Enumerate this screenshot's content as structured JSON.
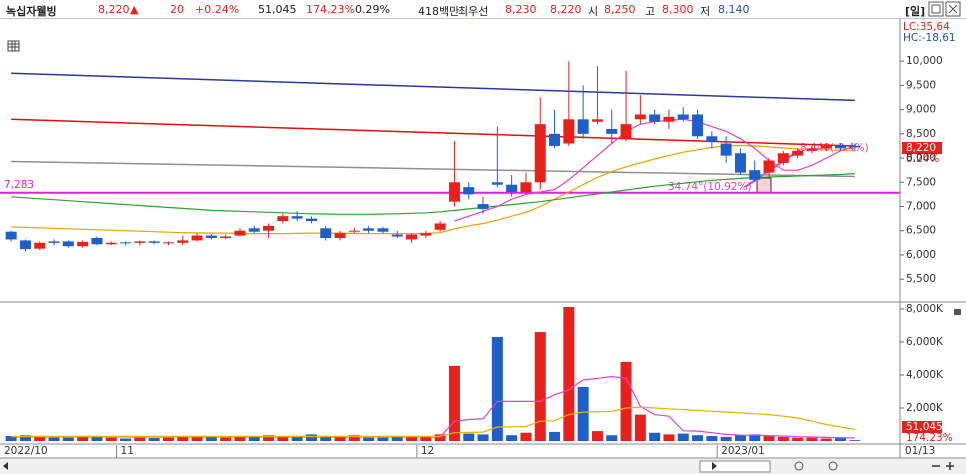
{
  "header": {
    "name": "녹십자웰빙",
    "price": "8,220",
    "arrow": "▲",
    "change": "20",
    "change_pct": "+0.24%",
    "volume": "51,045",
    "volume_ratio": "174.23%",
    "turnover": "0.29%",
    "amount": "418백만",
    "best_label": "최우선",
    "ask": "8,230",
    "bid": "8,220",
    "open_label": "시",
    "open": "8,250",
    "high_label": "고",
    "high": "8,300",
    "low_label": "저",
    "low": "8,140",
    "period": "[일]"
  },
  "chart_data": [
    {
      "type": "candlestick",
      "categories": [
        "2022/10",
        null,
        null,
        null,
        null,
        null,
        null,
        null,
        "11",
        null,
        null,
        null,
        null,
        null,
        null,
        null,
        null,
        null,
        null,
        null,
        null,
        null,
        null,
        null,
        null,
        null,
        null,
        null,
        null,
        "12",
        null,
        null,
        null,
        null,
        null,
        null,
        null,
        null,
        null,
        null,
        null,
        null,
        null,
        null,
        null,
        null,
        null,
        null,
        null,
        null,
        "2023/01",
        null,
        null,
        null,
        null,
        null,
        null,
        null,
        null,
        null
      ],
      "open": [
        6480,
        6300,
        6130,
        6280,
        6280,
        6180,
        6350,
        6220,
        6260,
        6250,
        6280,
        6240,
        6250,
        6300,
        6400,
        6350,
        6400,
        6550,
        6500,
        6700,
        6800,
        6750,
        6550,
        6350,
        6500,
        6550,
        6550,
        6420,
        6320,
        6400,
        6520,
        7100,
        7400,
        7050,
        7500,
        7450,
        7300,
        7500,
        8500,
        8300,
        8800,
        8750,
        8600,
        8400,
        8800,
        8900,
        8750,
        8900,
        8900,
        8450,
        8300,
        8100,
        7750,
        7700,
        7900,
        8050,
        8150,
        8200,
        8250,
        8250
      ],
      "high": [
        6500,
        6320,
        6280,
        6320,
        6300,
        6300,
        6380,
        6280,
        6280,
        6300,
        6300,
        6280,
        6400,
        6450,
        6430,
        6420,
        6550,
        6600,
        6650,
        6850,
        6900,
        6800,
        6600,
        6500,
        6560,
        6600,
        6580,
        6500,
        6450,
        6500,
        6700,
        8350,
        7500,
        7200,
        8650,
        7650,
        7700,
        9250,
        9000,
        10000,
        9500,
        9900,
        9000,
        9800,
        9300,
        9000,
        9000,
        9050,
        9000,
        8550,
        8450,
        8200,
        7950,
        8000,
        8150,
        8200,
        8250,
        8300,
        8300,
        8300
      ],
      "low": [
        6280,
        6080,
        6100,
        6200,
        6150,
        6150,
        6200,
        6200,
        6200,
        6200,
        6220,
        6200,
        6200,
        6280,
        6320,
        6320,
        6380,
        6450,
        6350,
        6650,
        6700,
        6650,
        6300,
        6300,
        6450,
        6450,
        6450,
        6350,
        6250,
        6350,
        6480,
        7000,
        7150,
        6850,
        7400,
        7200,
        7250,
        7350,
        8200,
        8250,
        8400,
        8700,
        8300,
        8350,
        8700,
        8700,
        8600,
        8750,
        8400,
        8200,
        7900,
        7650,
        7500,
        7600,
        7850,
        8000,
        8100,
        8150,
        8150,
        8140
      ],
      "close": [
        6320,
        6120,
        6250,
        6250,
        6180,
        6270,
        6220,
        6250,
        6240,
        6280,
        6250,
        6260,
        6300,
        6400,
        6350,
        6380,
        6500,
        6480,
        6600,
        6800,
        6750,
        6700,
        6350,
        6450,
        6500,
        6500,
        6480,
        6380,
        6420,
        6450,
        6650,
        7500,
        7250,
        6950,
        7450,
        7300,
        7500,
        8700,
        8250,
        8800,
        8500,
        8800,
        8500,
        8700,
        8900,
        8750,
        8850,
        8800,
        8450,
        8350,
        8050,
        7700,
        7550,
        7950,
        8100,
        8150,
        8200,
        8250,
        8200,
        8220
      ],
      "up_color": "#e8211c",
      "down_color": "#1f5fc8",
      "ylim": [
        5070,
        10850
      ],
      "yticks": [
        {
          "value": 5500,
          "label": "5,500"
        },
        {
          "value": 6000,
          "label": "6,000"
        },
        {
          "value": 6500,
          "label": "6,500"
        },
        {
          "value": 7000,
          "label": "7,000"
        },
        {
          "value": 7500,
          "label": "7,500"
        },
        {
          "value": 8000,
          "label": "8,000"
        },
        {
          "value": 8500,
          "label": "8,500"
        },
        {
          "value": 9000,
          "label": "9,000"
        },
        {
          "value": 9500,
          "label": "9,500"
        },
        {
          "value": 10000,
          "label": "10,000"
        }
      ],
      "trendlines": [
        {
          "color": "#2a3a9a",
          "values": [
            9750,
            9190
          ]
        },
        {
          "color": "#e01010",
          "values": [
            8800,
            8250
          ]
        },
        {
          "color": "#909090",
          "values": [
            7930,
            7620
          ]
        }
      ],
      "lines": [
        {
          "color": "#f0a000",
          "values": [
            6580,
            6570,
            6560,
            6550,
            6540,
            6530,
            6520,
            6510,
            6500,
            6490,
            6480,
            6470,
            6460,
            6455,
            6450,
            6450,
            6445,
            6440,
            6440,
            6440,
            6445,
            6450,
            6450,
            6450,
            6445,
            6440,
            6440,
            6440,
            6440,
            6445,
            6460,
            6540,
            6600,
            6650,
            6720,
            6800,
            6880,
            7000,
            7150,
            7300,
            7450,
            7600,
            7720,
            7820,
            7900,
            7980,
            8050,
            8120,
            8170,
            8220,
            8250,
            8260,
            8250,
            8230,
            8210,
            8190,
            8180,
            8170,
            8160,
            8150
          ]
        },
        {
          "color": "#30a030",
          "values": [
            7200,
            7180,
            7160,
            7140,
            7120,
            7100,
            7080,
            7060,
            7040,
            7020,
            7000,
            6980,
            6960,
            6940,
            6920,
            6910,
            6900,
            6890,
            6880,
            6870,
            6860,
            6850,
            6845,
            6840,
            6840,
            6840,
            6845,
            6850,
            6860,
            6870,
            6890,
            6920,
            6950,
            6980,
            7010,
            7040,
            7070,
            7100,
            7140,
            7180,
            7220,
            7260,
            7300,
            7340,
            7380,
            7420,
            7450,
            7480,
            7510,
            7540,
            7560,
            7580,
            7600,
            7610,
            7620,
            7630,
            7640,
            7650,
            7660,
            7680
          ]
        },
        {
          "color": "#e040d0",
          "values": [
            null,
            null,
            null,
            null,
            null,
            null,
            null,
            null,
            null,
            null,
            null,
            null,
            null,
            null,
            null,
            null,
            null,
            null,
            null,
            null,
            null,
            null,
            null,
            null,
            null,
            null,
            null,
            null,
            null,
            null,
            null,
            6700,
            6800,
            6900,
            7000,
            7150,
            7250,
            7300,
            7350,
            7550,
            7800,
            8050,
            8300,
            8550,
            8700,
            8750,
            8780,
            8800,
            8750,
            8650,
            8550,
            8400,
            8200,
            7950,
            7750,
            7750,
            7850,
            8000,
            8150,
            8250
          ]
        }
      ],
      "hline": {
        "value": 7283,
        "label": "7,283",
        "color": "#e020e0"
      },
      "annotations": [
        "34.74°(10.92%)",
        "8,440(-2.4%)"
      ],
      "lc": "LC:35,64",
      "hc": "HC:-18,61",
      "last_label": "8,220",
      "last_change": "0.24%"
    },
    {
      "type": "bar",
      "values": [
        300,
        350,
        250,
        200,
        200,
        250,
        300,
        200,
        150,
        200,
        180,
        200,
        250,
        300,
        250,
        200,
        250,
        300,
        350,
        250,
        300,
        400,
        300,
        250,
        350,
        200,
        200,
        250,
        300,
        250,
        400,
        4550,
        450,
        400,
        6300,
        350,
        500,
        6600,
        550,
        8120,
        3270,
        600,
        350,
        4790,
        1600,
        500,
        400,
        450,
        350,
        300,
        250,
        350,
        400,
        300,
        250,
        200,
        200,
        150,
        180,
        51.045
      ],
      "ylim": [
        0,
        8360
      ],
      "yticks": [
        {
          "value": 2000,
          "label": "2,000K"
        },
        {
          "value": 4000,
          "label": "4,000K"
        },
        {
          "value": 6000,
          "label": "6,000K"
        },
        {
          "value": 8000,
          "label": "8,000K"
        }
      ],
      "lines": [
        {
          "color": "#e040d0",
          "values": [
            250,
            250,
            250,
            250,
            250,
            250,
            250,
            250,
            250,
            250,
            250,
            250,
            250,
            250,
            250,
            250,
            250,
            250,
            250,
            250,
            250,
            250,
            250,
            250,
            250,
            250,
            250,
            250,
            250,
            250,
            250,
            1200,
            1300,
            1350,
            2400,
            2400,
            2400,
            2400,
            2800,
            3100,
            3700,
            3800,
            3900,
            3800,
            2100,
            1600,
            1500,
            620,
            600,
            500,
            400,
            350,
            350,
            320,
            300,
            260,
            240,
            220,
            200,
            190
          ]
        },
        {
          "color": "#f0b000",
          "values": [
            280,
            280,
            280,
            280,
            280,
            280,
            280,
            280,
            280,
            280,
            280,
            280,
            280,
            280,
            280,
            280,
            280,
            280,
            280,
            280,
            280,
            280,
            280,
            280,
            280,
            280,
            280,
            280,
            280,
            280,
            280,
            500,
            520,
            540,
            850,
            860,
            880,
            1200,
            1230,
            1600,
            1750,
            1780,
            1790,
            2000,
            2050,
            2000,
            1950,
            1900,
            1850,
            1800,
            1750,
            1700,
            1650,
            1600,
            1500,
            1400,
            1200,
            1000,
            850,
            700
          ]
        }
      ],
      "last_label": "51,045",
      "last_ratio": "174.23%"
    }
  ],
  "footer": {
    "date": "01/13"
  }
}
